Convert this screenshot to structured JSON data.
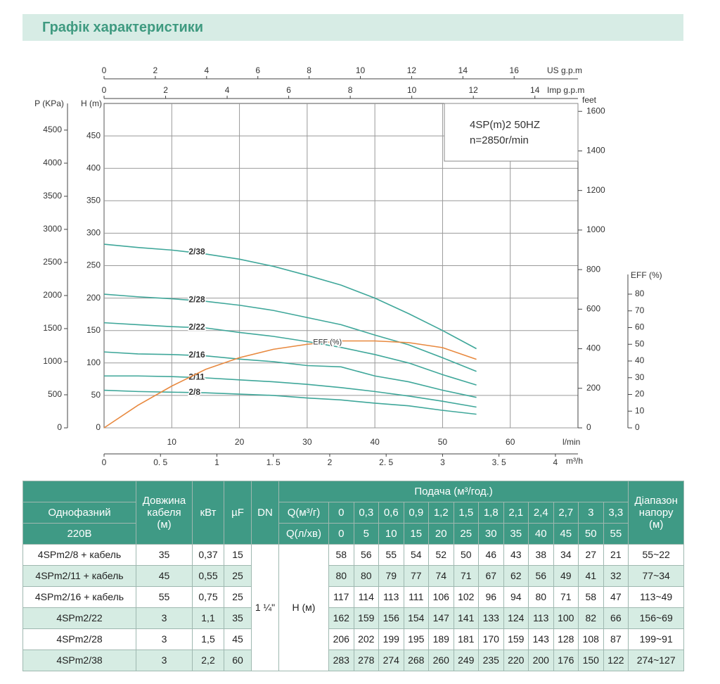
{
  "header": {
    "title": "Графік характеристики"
  },
  "chart_data": {
    "type": "line",
    "xlabel": "l/min",
    "xlim": [
      0,
      70
    ],
    "xticks": [
      10,
      20,
      30,
      40,
      50,
      60
    ],
    "ylabel": "H (m)",
    "ylim": [
      0,
      500
    ],
    "yticks": [
      0,
      50,
      100,
      150,
      200,
      250,
      300,
      350,
      400,
      450
    ],
    "y2label": "EFF (%)",
    "y2lim": [
      0,
      80
    ],
    "y2ticks": [
      0,
      10,
      20,
      30,
      40,
      50,
      60,
      70,
      80
    ],
    "grid": true,
    "extra_axes": [
      {
        "position": "top",
        "label": "US g.p.m",
        "lim": [
          0,
          18.49
        ],
        "ticks": [
          0,
          2,
          4,
          6,
          8,
          10,
          12,
          14,
          16
        ]
      },
      {
        "position": "top",
        "label": "Imp g.p.m",
        "lim": [
          0,
          15.4
        ],
        "ticks": [
          0,
          2,
          4,
          6,
          8,
          10,
          12,
          14
        ]
      },
      {
        "position": "bottom",
        "label": "m³/h",
        "lim": [
          0,
          4.2
        ],
        "ticks": [
          0,
          {
            "value": 0.5,
            "label": "0. 5"
          },
          1,
          {
            "value": 1.5,
            "label": "1. 5"
          },
          2,
          {
            "value": 2.5,
            "label": "2. 5"
          },
          3,
          {
            "value": 3.5,
            "label": "3. 5"
          },
          4
        ]
      },
      {
        "position": "left",
        "label": "P (KPa)",
        "lim": [
          0,
          4903
        ],
        "ticks": [
          0,
          500,
          1000,
          1500,
          2000,
          2500,
          3000,
          3500,
          4000,
          4500
        ]
      },
      {
        "position": "right",
        "label": "feet",
        "lim": [
          0,
          1640
        ],
        "ticks": [
          0,
          200,
          400,
          600,
          800,
          1000,
          1200,
          1400,
          1600
        ]
      }
    ],
    "annotations": [
      "4SP(m)2  50HZ",
      "n=2850r/min"
    ],
    "x": [
      0,
      5,
      10,
      15,
      20,
      25,
      30,
      35,
      40,
      45,
      50,
      55
    ],
    "series": [
      {
        "name": "2/8",
        "color": "#3fa79a",
        "values": [
          58,
          56,
          55,
          54,
          52,
          50,
          46,
          43,
          38,
          34,
          27,
          21
        ]
      },
      {
        "name": "2/11",
        "color": "#3fa79a",
        "values": [
          80,
          80,
          79,
          77,
          74,
          71,
          67,
          62,
          56,
          49,
          41,
          32
        ]
      },
      {
        "name": "2/16",
        "color": "#3fa79a",
        "values": [
          117,
          114,
          113,
          111,
          106,
          102,
          96,
          94,
          80,
          71,
          58,
          47
        ]
      },
      {
        "name": "2/22",
        "color": "#3fa79a",
        "values": [
          162,
          159,
          156,
          154,
          147,
          141,
          133,
          124,
          113,
          100,
          82,
          66
        ]
      },
      {
        "name": "2/28",
        "color": "#3fa79a",
        "values": [
          206,
          202,
          199,
          195,
          189,
          181,
          170,
          159,
          143,
          128,
          108,
          87
        ]
      },
      {
        "name": "2/38",
        "color": "#3fa79a",
        "values": [
          283,
          278,
          274,
          268,
          260,
          249,
          235,
          220,
          200,
          176,
          150,
          122
        ]
      },
      {
        "name": "EFF (%)",
        "color": "#e8893f",
        "axis": "y2",
        "values": [
          0,
          13.5,
          25,
          35,
          42,
          47,
          50,
          52,
          52,
          51,
          48,
          41
        ]
      }
    ]
  },
  "table": {
    "phase": "Однофазний",
    "voltage": "220В",
    "cable": "Довжина кабеля (м)",
    "kw": "кВт",
    "uf": "µF",
    "dn": "DN",
    "flow": "Подача (м³/год.)",
    "q_m3_label": "Q(м³/г)",
    "q_l_label": "Q(л/хв)",
    "range": "Діапазон напору (м)",
    "q_m3": [
      "0",
      "0,3",
      "0,6",
      "0,9",
      "1,2",
      "1,5",
      "1,8",
      "2,1",
      "2,4",
      "2,7",
      "3",
      "3,3"
    ],
    "q_l": [
      0,
      5,
      10,
      15,
      20,
      25,
      30,
      35,
      40,
      45,
      50,
      55
    ],
    "dn_value": "1 ¼\"",
    "head_label": "Н (м)",
    "rows": [
      {
        "model": "4SPm2/8 + кабель",
        "cable": 35,
        "kw": "0,37",
        "uf": 15,
        "head": [
          58,
          56,
          55,
          54,
          52,
          50,
          46,
          43,
          38,
          34,
          27,
          21
        ],
        "range": "55~22"
      },
      {
        "model": "4SPm2/11 + кабель",
        "cable": 45,
        "kw": "0,55",
        "uf": 25,
        "head": [
          80,
          80,
          79,
          77,
          74,
          71,
          67,
          62,
          56,
          49,
          41,
          32
        ],
        "range": "77~34"
      },
      {
        "model": "4SPm2/16 + кабель",
        "cable": 55,
        "kw": "0,75",
        "uf": 25,
        "head": [
          117,
          114,
          113,
          111,
          106,
          102,
          96,
          94,
          80,
          71,
          58,
          47
        ],
        "range": "113~49"
      },
      {
        "model": "4SPm2/22",
        "cable": 3,
        "kw": "1,1",
        "uf": 35,
        "head": [
          162,
          159,
          156,
          154,
          147,
          141,
          133,
          124,
          113,
          100,
          82,
          66
        ],
        "range": "156~69"
      },
      {
        "model": "4SPm2/28",
        "cable": 3,
        "kw": "1,5",
        "uf": 45,
        "head": [
          206,
          202,
          199,
          195,
          189,
          181,
          170,
          159,
          143,
          128,
          108,
          87
        ],
        "range": "199~91"
      },
      {
        "model": "4SPm2/38",
        "cable": 3,
        "kw": "2,2",
        "uf": 60,
        "head": [
          283,
          278,
          274,
          268,
          260,
          249,
          235,
          220,
          200,
          176,
          150,
          122
        ],
        "range": "274~127"
      }
    ]
  }
}
